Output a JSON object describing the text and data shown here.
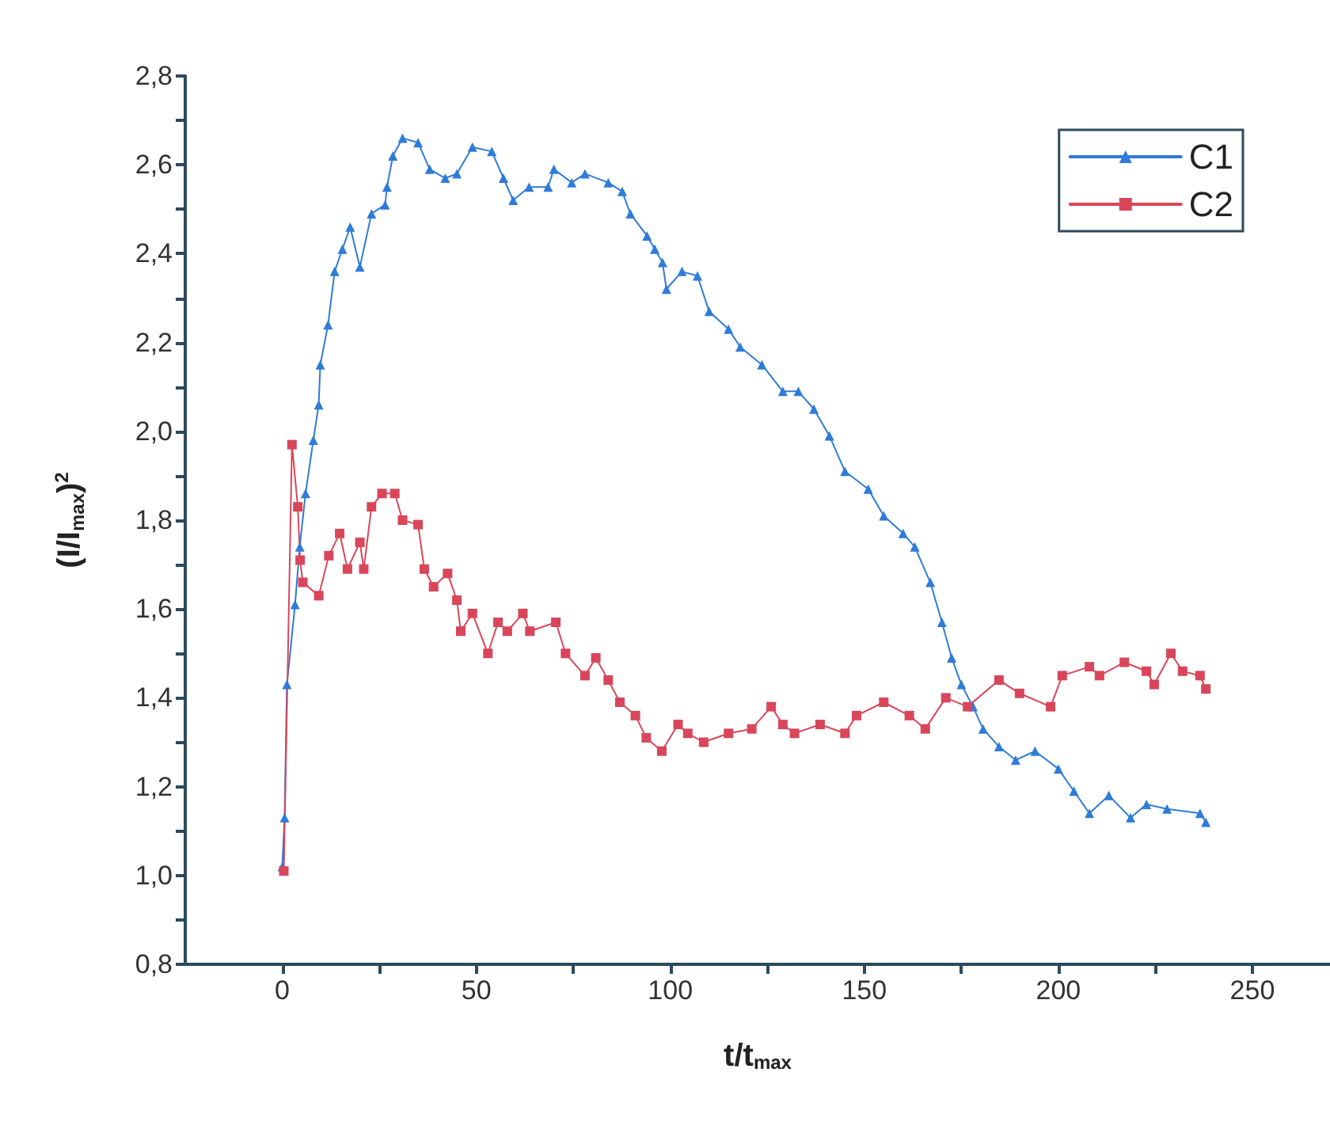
{
  "chart_data": {
    "type": "line",
    "xlabel": "t/t$_{max}$",
    "ylabel": "(I/I$_{max}$)$^{2}$",
    "xlim": [
      -25,
      270
    ],
    "xticks": [
      0,
      {
        "value": 25,
        "label": null
      },
      50,
      {
        "value": 75,
        "label": null
      },
      100,
      {
        "value": 125,
        "label": null
      },
      150,
      {
        "value": 175,
        "label": null
      },
      200,
      {
        "value": 225,
        "label": null
      },
      250
    ],
    "ylim": [
      0.8,
      2.8
    ],
    "yticks": [
      {
        "value": 0.8,
        "label": "0,8"
      },
      {
        "value": 0.9,
        "label": null
      },
      {
        "value": 1.0,
        "label": "1,0"
      },
      {
        "value": 1.1,
        "label": null
      },
      {
        "value": 1.2,
        "label": "1,2"
      },
      {
        "value": 1.3,
        "label": null
      },
      {
        "value": 1.4,
        "label": "1,4"
      },
      {
        "value": 1.5,
        "label": null
      },
      {
        "value": 1.6,
        "label": "1,6"
      },
      {
        "value": 1.7,
        "label": null
      },
      {
        "value": 1.8,
        "label": "1,8"
      },
      {
        "value": 1.9,
        "label": null
      },
      {
        "value": 2.0,
        "label": "2,0"
      },
      {
        "value": 2.1,
        "label": null
      },
      {
        "value": 2.2,
        "label": "2,2"
      },
      {
        "value": 2.3,
        "label": null
      },
      {
        "value": 2.4,
        "label": "2,4"
      },
      {
        "value": 2.5,
        "label": null
      },
      {
        "value": 2.6,
        "label": "2,6"
      },
      {
        "value": 2.7,
        "label": null
      },
      {
        "value": 2.8,
        "label": "2,8"
      }
    ],
    "grid": false,
    "legend": "top right",
    "line_style": "solid",
    "series": [
      {
        "name": "C1",
        "color": "#2f7bd8",
        "marker": "triangle",
        "x": [
          0,
          0.6,
          1.2,
          3.3,
          4.5,
          6,
          8,
          9.4,
          9.8,
          11.8,
          13.5,
          15.5,
          17.5,
          20,
          23,
          26.5,
          27,
          28.5,
          31,
          35,
          38,
          42,
          45,
          49,
          54,
          57,
          59.5,
          63.6,
          68.5,
          70,
          74.6,
          78,
          84,
          87.6,
          89.7,
          94,
          96,
          98,
          99,
          103,
          107,
          110,
          115,
          118,
          123.6,
          129,
          133,
          137,
          141,
          145,
          151,
          155,
          160,
          163,
          167,
          170,
          172.5,
          175,
          178,
          180.6,
          184.7,
          189,
          194,
          200,
          204,
          208,
          213,
          218.6,
          222.7,
          228,
          236.5,
          238
        ],
        "values": [
          1.02,
          1.13,
          1.43,
          1.61,
          1.74,
          1.86,
          1.98,
          2.06,
          2.15,
          2.24,
          2.36,
          2.41,
          2.46,
          2.37,
          2.49,
          2.51,
          2.55,
          2.62,
          2.66,
          2.65,
          2.59,
          2.57,
          2.58,
          2.64,
          2.63,
          2.57,
          2.52,
          2.55,
          2.55,
          2.59,
          2.56,
          2.58,
          2.56,
          2.54,
          2.49,
          2.44,
          2.41,
          2.38,
          2.32,
          2.36,
          2.35,
          2.27,
          2.23,
          2.19,
          2.15,
          2.09,
          2.09,
          2.05,
          1.99,
          1.91,
          1.87,
          1.81,
          1.77,
          1.74,
          1.66,
          1.57,
          1.49,
          1.43,
          1.38,
          1.33,
          1.29,
          1.26,
          1.28,
          1.24,
          1.19,
          1.14,
          1.18,
          1.13,
          1.16,
          1.15,
          1.14,
          1.12
        ]
      },
      {
        "name": "C2",
        "color": "#d9465a",
        "marker": "square",
        "x": [
          0.4,
          2.5,
          4,
          4.6,
          5.3,
          9.4,
          12,
          14.8,
          16.8,
          20,
          21,
          23,
          25.7,
          29,
          31,
          35,
          36.6,
          39,
          42.6,
          45,
          46,
          49,
          53,
          55.6,
          58,
          62,
          63.8,
          70.5,
          73,
          78,
          80.8,
          84,
          87,
          91,
          93.8,
          97.8,
          102,
          104.5,
          108.6,
          115,
          121,
          126,
          129,
          132,
          138.6,
          145,
          148,
          155,
          161.6,
          165.7,
          171,
          176.6,
          184.7,
          190,
          198,
          201,
          208,
          210.6,
          217,
          222.7,
          224.7,
          229,
          232,
          236.5,
          238
        ],
        "values": [
          1.01,
          1.97,
          1.83,
          1.71,
          1.66,
          1.63,
          1.72,
          1.77,
          1.69,
          1.75,
          1.69,
          1.83,
          1.86,
          1.86,
          1.8,
          1.79,
          1.69,
          1.65,
          1.68,
          1.62,
          1.55,
          1.59,
          1.5,
          1.57,
          1.55,
          1.59,
          1.55,
          1.57,
          1.5,
          1.45,
          1.49,
          1.44,
          1.39,
          1.36,
          1.31,
          1.28,
          1.34,
          1.32,
          1.3,
          1.32,
          1.33,
          1.38,
          1.34,
          1.32,
          1.34,
          1.32,
          1.36,
          1.39,
          1.36,
          1.33,
          1.4,
          1.38,
          1.44,
          1.41,
          1.38,
          1.45,
          1.47,
          1.45,
          1.48,
          1.46,
          1.43,
          1.5,
          1.46,
          1.45,
          1.42
        ]
      }
    ]
  }
}
